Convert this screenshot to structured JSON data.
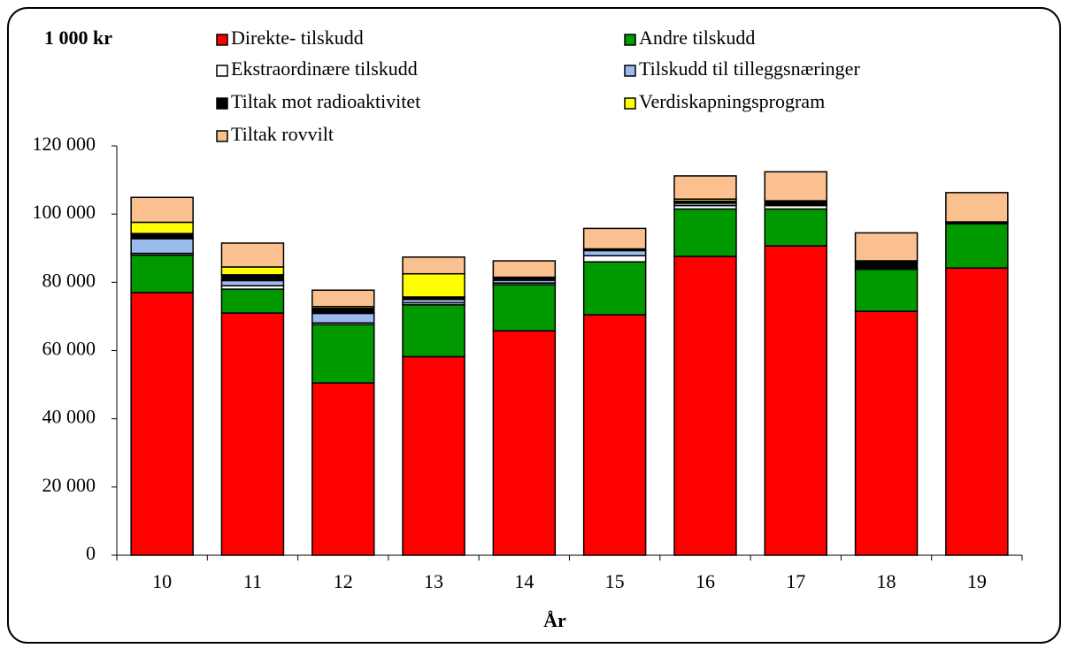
{
  "chart_data": {
    "type": "stacked_bar",
    "unit_label": "1 000 kr",
    "xlabel": "År",
    "categories": [
      "10",
      "11",
      "12",
      "13",
      "14",
      "15",
      "16",
      "17",
      "18",
      "19"
    ],
    "series": [
      {
        "name": "Direkte- tilskudd",
        "color": "#ff0000",
        "values": [
          77000,
          71000,
          50500,
          58200,
          65800,
          70500,
          87600,
          90700,
          71500,
          84200
        ]
      },
      {
        "name": "Andre tilskudd",
        "color": "#009900",
        "values": [
          11000,
          7000,
          17100,
          15200,
          13500,
          15500,
          13900,
          10800,
          12300,
          13000
        ]
      },
      {
        "name": "Ekstraordinære tilskudd",
        "color": "#ffffff",
        "values": [
          500,
          1000,
          500,
          600,
          500,
          1800,
          1000,
          1000,
          0,
          0
        ]
      },
      {
        "name": "Tilskudd til  tilleggsnæringer",
        "color": "#99bbee",
        "values": [
          4300,
          1500,
          2800,
          1000,
          800,
          1500,
          700,
          400,
          0,
          0
        ]
      },
      {
        "name": "Tiltak mot radioaktivitet",
        "color": "#000000",
        "values": [
          1500,
          1700,
          1500,
          700,
          700,
          300,
          600,
          800,
          2500,
          500
        ]
      },
      {
        "name": "Verdiskapningsprogram",
        "color": "#ffff00",
        "values": [
          3300,
          2300,
          500,
          6800,
          200,
          200,
          600,
          200,
          0,
          0
        ]
      },
      {
        "name": "Tiltak rovvilt",
        "color": "#fac090",
        "values": [
          7300,
          7000,
          4800,
          4900,
          4800,
          6000,
          6800,
          8500,
          8200,
          8600
        ]
      }
    ],
    "ylim": [
      0,
      120000
    ],
    "yticks": [
      0,
      {
        "value": 20000,
        "label": "20 000"
      },
      {
        "value": 40000,
        "label": "40 000"
      },
      {
        "value": 60000,
        "label": "60 000"
      },
      {
        "value": 80000,
        "label": "80 000"
      },
      {
        "value": 100000,
        "label": "100 000"
      },
      {
        "value": 120000,
        "label": "120 000"
      }
    ]
  }
}
